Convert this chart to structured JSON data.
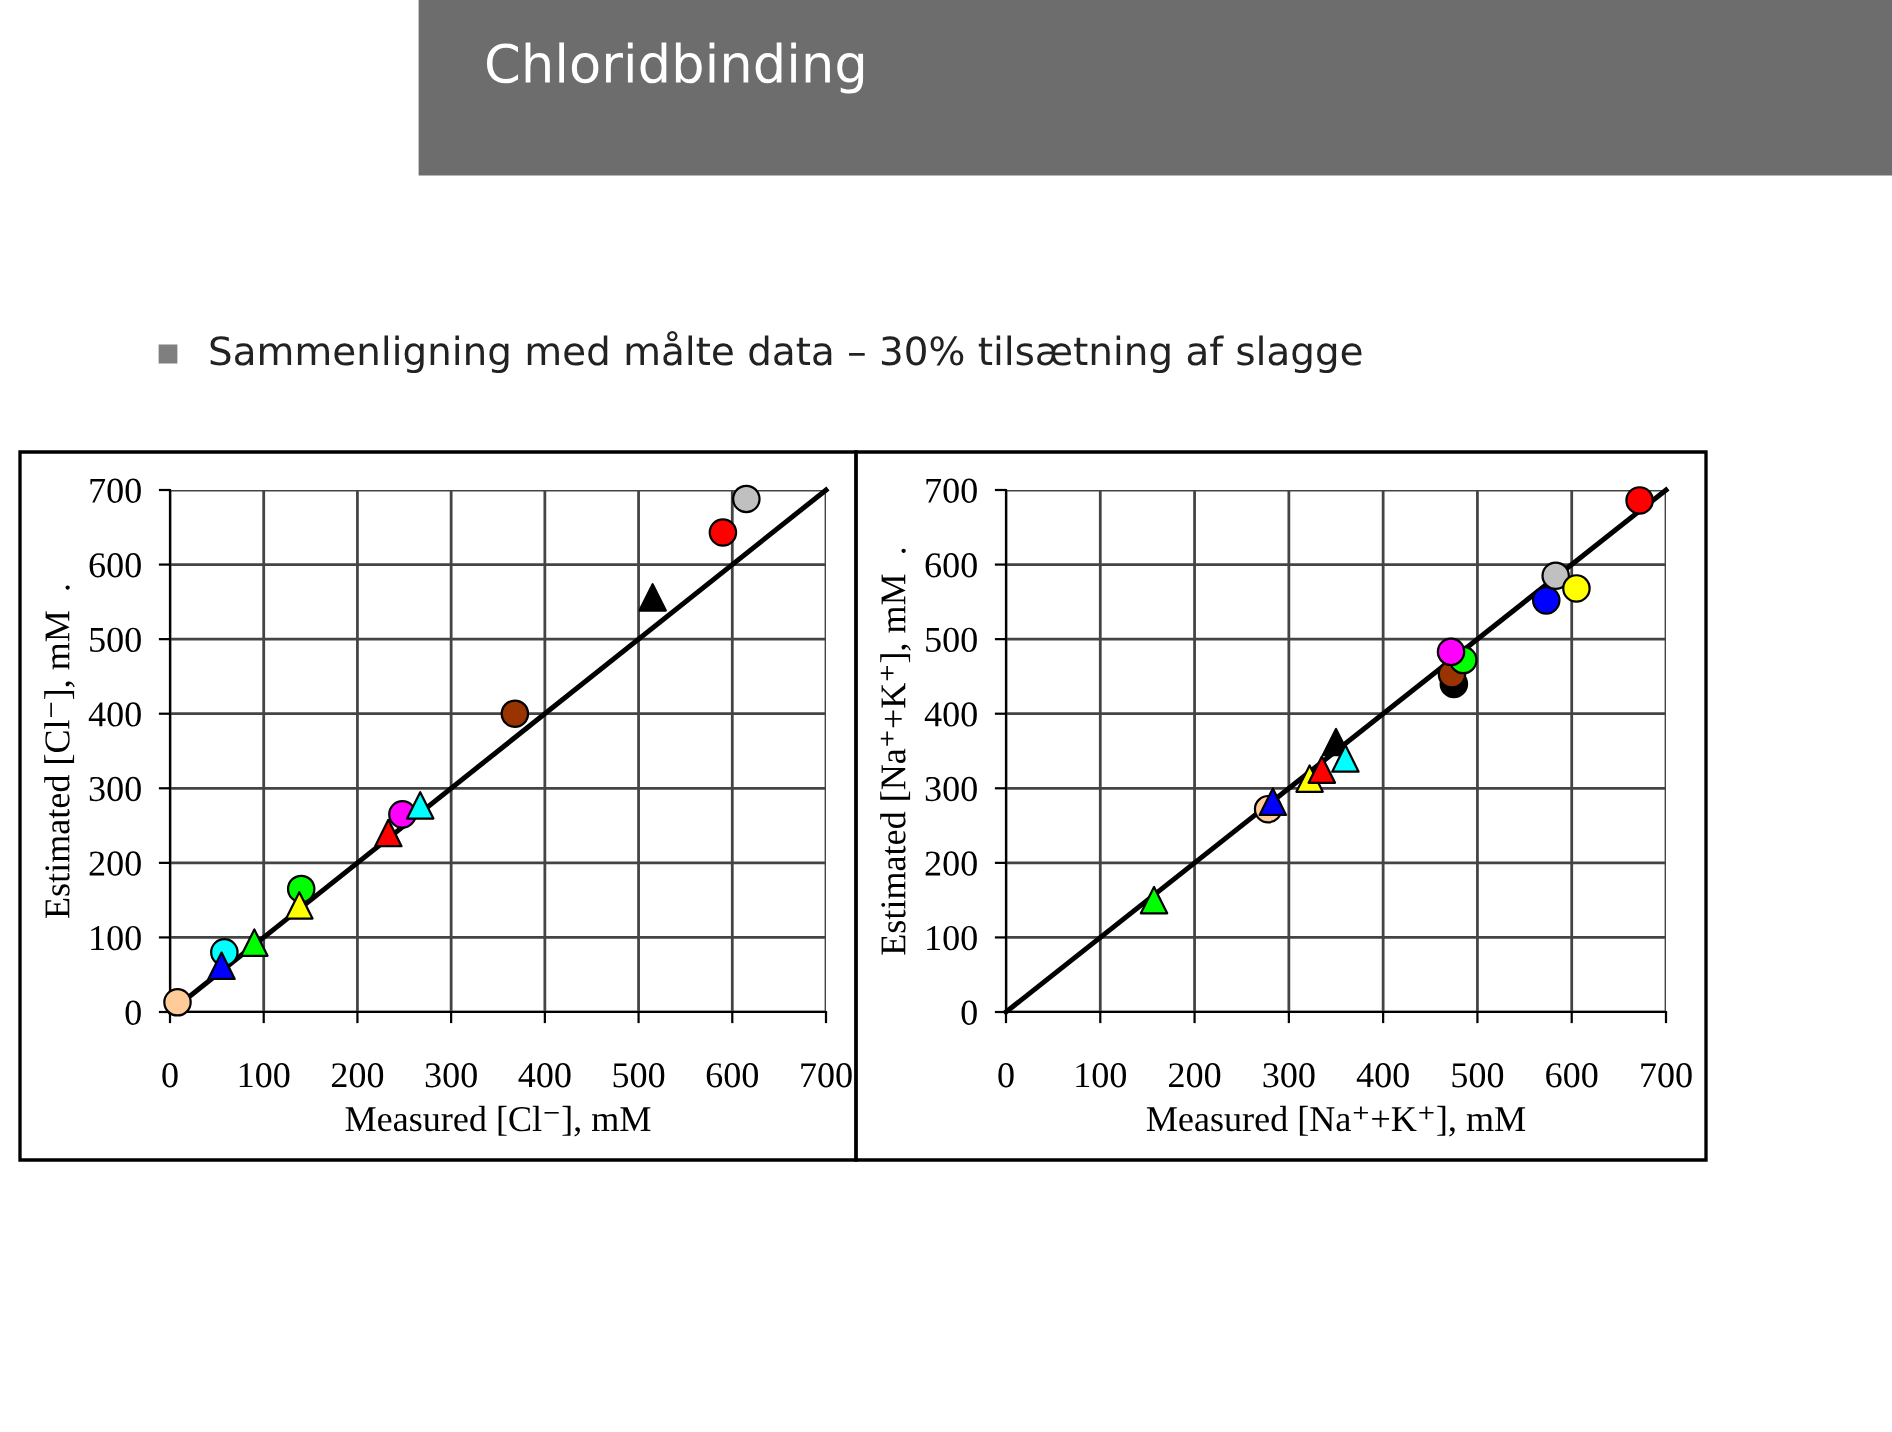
{
  "chart_data": [
    {
      "type": "scatter",
      "title": "Chloridbinding",
      "subtitle": "Sammenligning med målte data – 30% tilsætning af slagge",
      "xlabel": "Measured [Cl⁻], mM",
      "ylabel": "Estimated [Cl⁻], mM  .",
      "xlim": [
        0,
        700
      ],
      "ylim": [
        0,
        700
      ],
      "xticks": [
        0,
        100,
        200,
        300,
        400,
        500,
        600,
        700
      ],
      "yticks": [
        0,
        100,
        200,
        300,
        400,
        500,
        600,
        700
      ],
      "grid": true,
      "legend": false,
      "series": [
        {
          "type": "line",
          "color": "#000000",
          "marker": "none",
          "line_style": "solid",
          "x": [
            0,
            700
          ],
          "values": [
            0,
            700
          ]
        },
        {
          "type": "scatter",
          "marker": "circle",
          "x": [
            8,
            58,
            140,
            248,
            368,
            590,
            615
          ],
          "values": [
            13,
            80,
            165,
            265,
            400,
            643,
            688
          ],
          "colors": [
            "#ffcc99",
            "#00ffff",
            "#00ff00",
            "#ff00ff",
            "#993300",
            "#ff0000",
            "#c0c0c0"
          ]
        },
        {
          "type": "scatter",
          "marker": "triangle",
          "x": [
            55,
            90,
            138,
            233,
            267,
            515
          ],
          "values": [
            62,
            93,
            143,
            240,
            277,
            556
          ],
          "colors": [
            "#0000ff",
            "#00ff00",
            "#ffff00",
            "#ff0000",
            "#00ffff",
            "#000000"
          ]
        }
      ]
    },
    {
      "type": "scatter",
      "xlabel": "Measured [Na⁺+K⁺], mM",
      "ylabel": "Estimated [Na⁺+K⁺], mM  .",
      "xlim": [
        0,
        700
      ],
      "ylim": [
        0,
        700
      ],
      "xticks": [
        0,
        100,
        200,
        300,
        400,
        500,
        600,
        700
      ],
      "yticks": [
        0,
        100,
        200,
        300,
        400,
        500,
        600,
        700
      ],
      "grid": true,
      "legend": false,
      "series": [
        {
          "type": "line",
          "color": "#000000",
          "marker": "none",
          "line_style": "solid",
          "x": [
            0,
            700
          ],
          "values": [
            0,
            700
          ]
        },
        {
          "type": "scatter",
          "marker": "circle",
          "x": [
            278,
            475,
            473,
            485,
            472,
            573,
            583,
            605,
            672
          ],
          "values": [
            272,
            440,
            453,
            472,
            483,
            552,
            585,
            568,
            686
          ],
          "colors": [
            "#ffcc99",
            "#000000",
            "#993300",
            "#00ff00",
            "#ff00ff",
            "#0000ff",
            "#c0c0c0",
            "#ffff00",
            "#ff0000"
          ]
        },
        {
          "type": "scatter",
          "marker": "triangle",
          "x": [
            157,
            283,
            322,
            335,
            350,
            360
          ],
          "values": [
            150,
            282,
            313,
            325,
            362,
            340
          ],
          "colors": [
            "#00ff00",
            "#0000ff",
            "#ffff00",
            "#ff0000",
            "#000000",
            "#00ffff"
          ]
        }
      ]
    }
  ]
}
